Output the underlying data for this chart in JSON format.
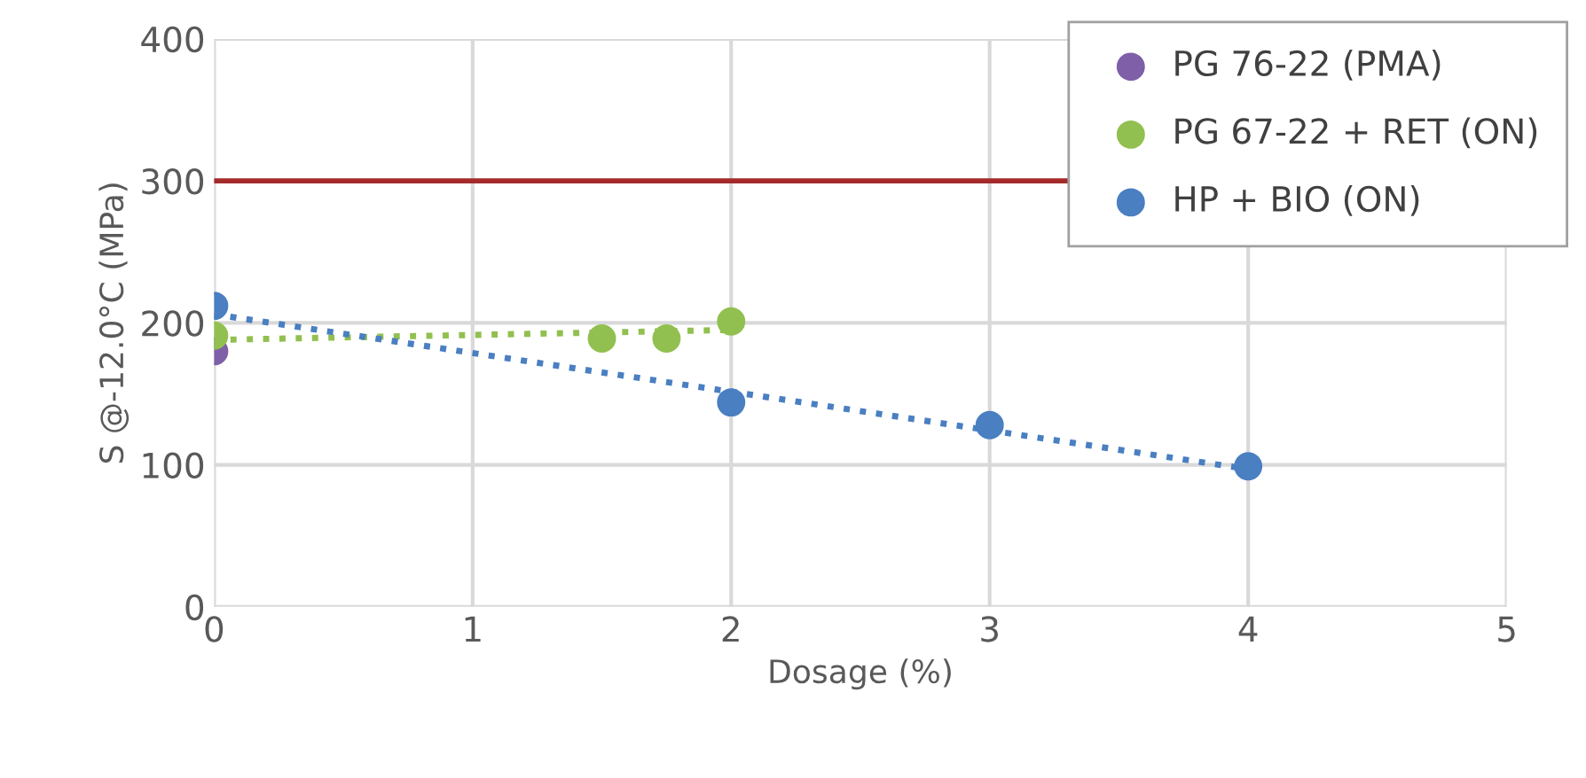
{
  "chart_data": {
    "type": "scatter",
    "xlabel": "Dosage (%)",
    "ylabel": "S @-12.0°C (MPa)",
    "xlim": [
      0,
      5
    ],
    "xticks": [
      0,
      1,
      2,
      3,
      4,
      5
    ],
    "ylim": [
      0,
      400
    ],
    "yticks": [
      0,
      100,
      200,
      300,
      400
    ],
    "grid": true,
    "legend": "top right",
    "marker": "circle",
    "series": [
      {
        "name": "PG 76-22 (PMA)",
        "color": "#7f5fa8",
        "x": [
          0
        ],
        "values": [
          180
        ]
      },
      {
        "name": "PG 67-22 + RET (ON)",
        "color": "#92c050",
        "x": [
          0,
          1.5,
          1.75,
          2
        ],
        "values": [
          191,
          189,
          189,
          201
        ]
      },
      {
        "name": "HP + BIO (ON)",
        "color": "#4a7fc1",
        "x": [
          0,
          2,
          3,
          4
        ],
        "values": [
          212,
          144,
          128,
          99
        ]
      },
      {
        "type": "line",
        "color": "#92c050",
        "line_style": "dotted",
        "marker": "none",
        "x": [
          0,
          2
        ],
        "values": [
          188,
          195
        ]
      },
      {
        "type": "line",
        "color": "#4a7fc1",
        "line_style": "dotted",
        "marker": "none",
        "x": [
          0,
          4
        ],
        "values": [
          206,
          97
        ]
      }
    ],
    "ref_lines": [
      {
        "axis": "y",
        "value": 300,
        "color": "#a52a2a",
        "line_style": "solid"
      }
    ]
  }
}
